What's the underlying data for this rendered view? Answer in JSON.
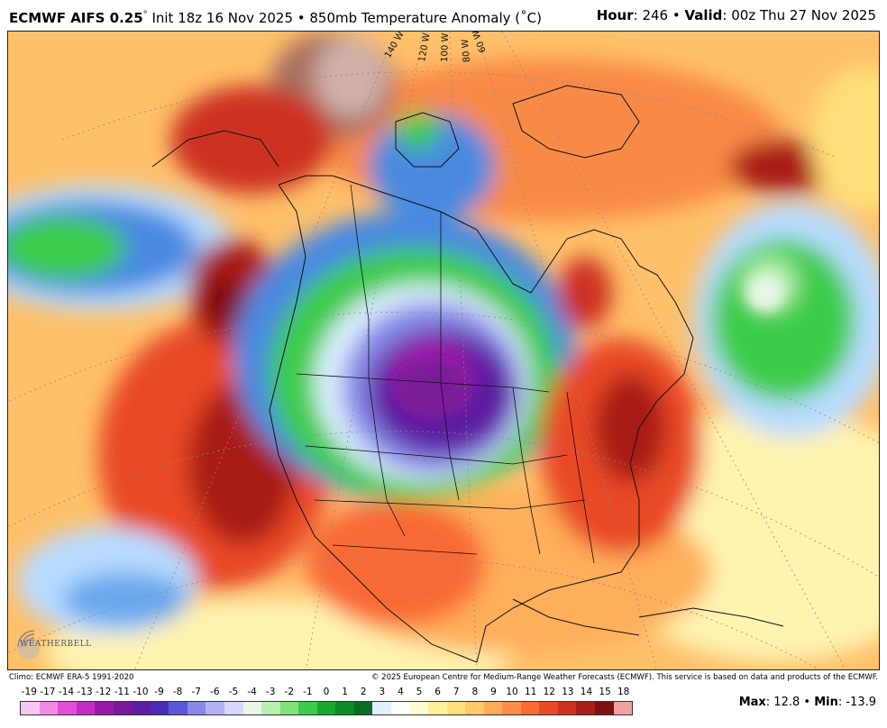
{
  "header": {
    "model": "ECMWF AIFS 0.25",
    "deg": "°",
    "init": " Init 18z 16 Nov 2025 • 850mb Temperature Anomaly (˚C)",
    "hour_label": "Hour",
    "hour_value": ": 246 • ",
    "valid_label": "Valid",
    "valid_value": ": 00z Thu 27 Nov 2025"
  },
  "map": {
    "meridian_labels": [
      "140 W",
      "120 W",
      "100 W",
      "80 W",
      "60 W"
    ],
    "logo_text": "WEATHERBELL"
  },
  "credits": {
    "climo": "Climo: ECMWF ERA-5 1991-2020",
    "copyright": "© 2025 European Centre for Medium-Range Weather Forecasts (ECMWF). This service is based on data and products of the ECMWF."
  },
  "legend": {
    "ticks": [
      "-19",
      "-17",
      "-14",
      "-13",
      "-12",
      "-11",
      "-10",
      "-9",
      "-8",
      "-7",
      "-6",
      "-5",
      "-4",
      "-3",
      "-2",
      "-1",
      "0",
      "1",
      "2",
      "3",
      "4",
      "5",
      "6",
      "7",
      "8",
      "9",
      "10",
      "11",
      "12",
      "13",
      "14",
      "15",
      "18"
    ],
    "colors": [
      "#f7c6f2",
      "#f08ae6",
      "#e050d6",
      "#c42cc0",
      "#9a1aa8",
      "#7a1a98",
      "#5c1fa0",
      "#4a2ab8",
      "#5a56d8",
      "#8888e8",
      "#b2b2f2",
      "#d8d8fa",
      "#e8f6e8",
      "#b8f0b0",
      "#7ee37a",
      "#3dcc4a",
      "#1aa830",
      "#0e8a26",
      "#0c6b22",
      "#dff1ff",
      "#ffffff",
      "#fffbd0",
      "#fff09a",
      "#ffe07a",
      "#ffc86a",
      "#ffac5a",
      "#ff8c4a",
      "#f86a36",
      "#e84a28",
      "#cc3220",
      "#a81e18",
      "#7e1010",
      "#f2a0a0"
    ],
    "max_label": "Max",
    "max_value": ": 12.8 • ",
    "min_label": "Min",
    "min_value": ": -13.9"
  }
}
